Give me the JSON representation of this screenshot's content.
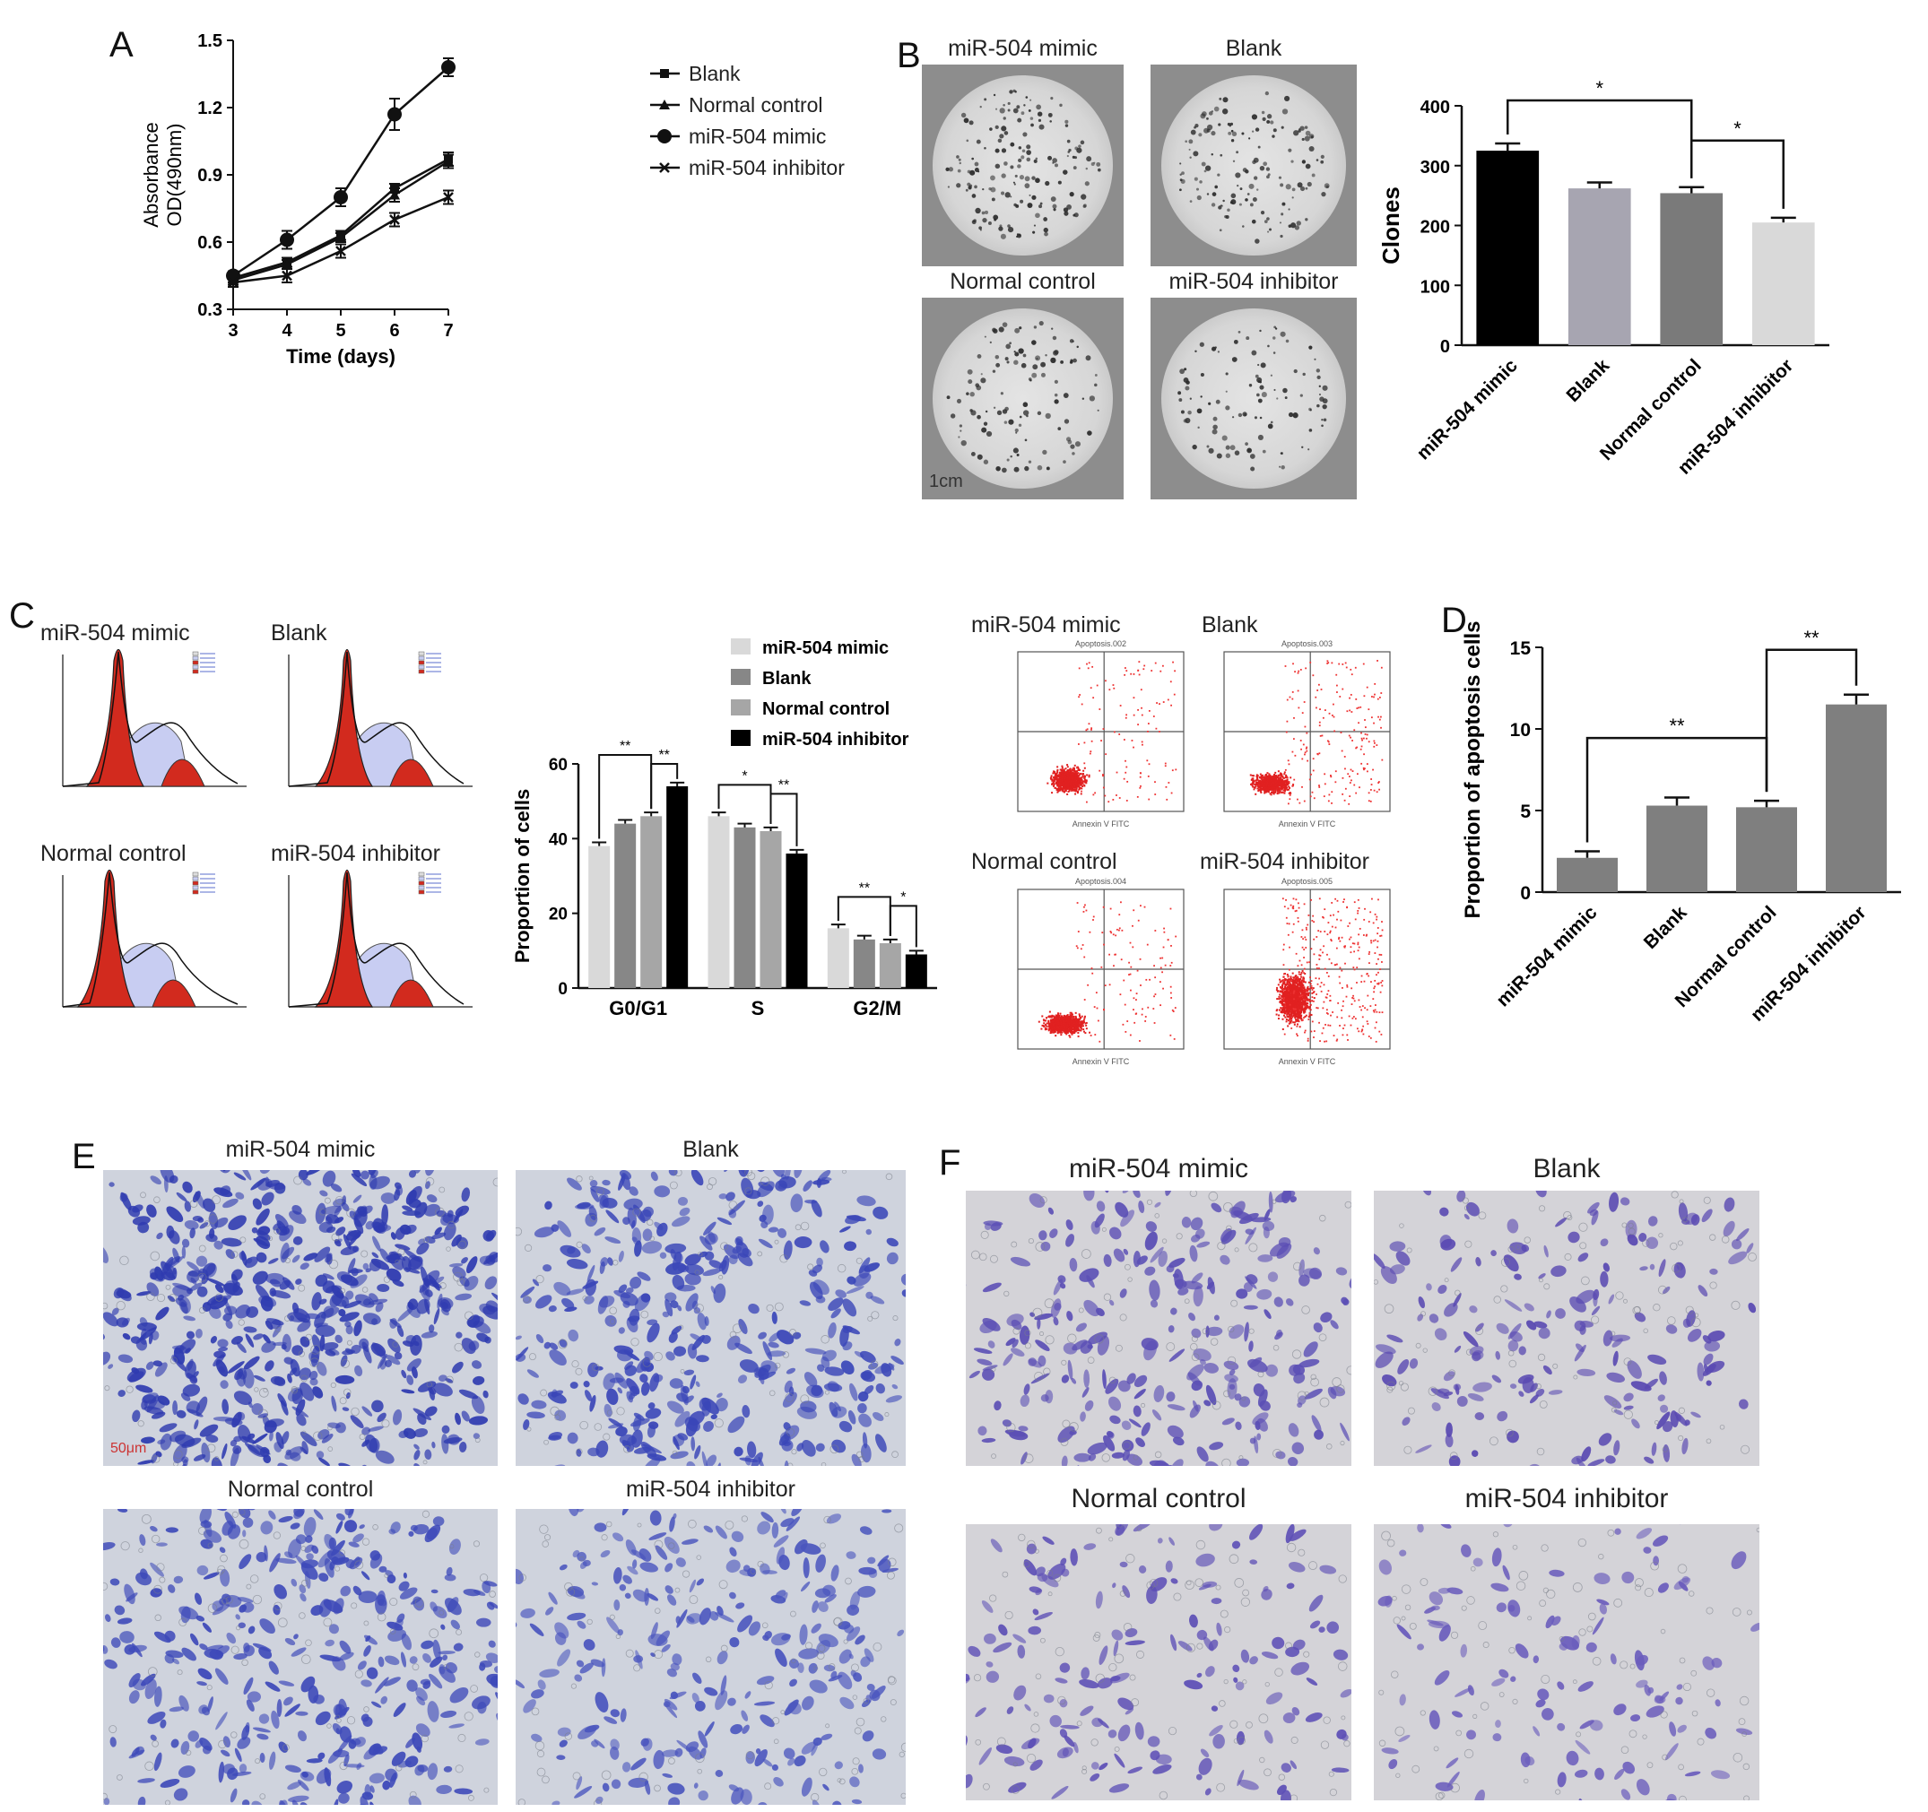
{
  "panels": {
    "A": "A",
    "B": "B",
    "C": "C",
    "D": "D",
    "E": "E",
    "F": "F"
  },
  "groups": [
    "miR-504 mimic",
    "Blank",
    "Normal control",
    "miR-504 inhibitor"
  ],
  "scale_b": "1cm",
  "scale_e": "50μm",
  "flow_titles": [
    "Apoptosis.002",
    "Apoptosis.003",
    "Apoptosis.004",
    "Apoptosis.005"
  ],
  "flow_axis": "Annexin V FITC",
  "chart_data": [
    {
      "id": "A",
      "type": "line",
      "xlabel": "Time (days)",
      "ylabel": "Absorbance OD(490nm)",
      "x": [
        3,
        4,
        5,
        6,
        7
      ],
      "xlim": [
        3,
        7
      ],
      "ylim": [
        0.3,
        1.5
      ],
      "yticks": [
        0.3,
        0.6,
        0.9,
        1.2,
        1.5
      ],
      "legend_position": "top-right outside",
      "series": [
        {
          "name": "Blank",
          "marker": "square",
          "values": [
            0.44,
            0.51,
            0.63,
            0.84,
            0.97
          ],
          "err": [
            0.02,
            0.02,
            0.02,
            0.02,
            0.03
          ]
        },
        {
          "name": "Normal control",
          "marker": "triangle",
          "values": [
            0.43,
            0.5,
            0.62,
            0.81,
            0.96
          ],
          "err": [
            0.02,
            0.02,
            0.02,
            0.03,
            0.03
          ]
        },
        {
          "name": "miR-504 mimic",
          "marker": "circle",
          "values": [
            0.45,
            0.61,
            0.8,
            1.17,
            1.38
          ],
          "err": [
            0.02,
            0.04,
            0.04,
            0.07,
            0.04
          ]
        },
        {
          "name": "miR-504 inhibitor",
          "marker": "x",
          "values": [
            0.42,
            0.45,
            0.56,
            0.7,
            0.8
          ],
          "err": [
            0.02,
            0.03,
            0.03,
            0.03,
            0.03
          ]
        }
      ]
    },
    {
      "id": "B",
      "type": "bar",
      "ylabel": "Clones",
      "categories": [
        "miR-504 mimic",
        "Blank",
        "Normal control",
        "miR-504 inhibitor"
      ],
      "values": [
        325,
        262,
        254,
        205
      ],
      "err": [
        12,
        10,
        10,
        8
      ],
      "colors": [
        "#000000",
        "#a7a5b1",
        "#7a7a7a",
        "#d9d9d9"
      ],
      "ylim": [
        0,
        400
      ],
      "yticks": [
        0,
        100,
        200,
        300,
        400
      ],
      "significance": [
        {
          "from": 0,
          "to": 2,
          "label": "*"
        },
        {
          "from": 2,
          "to": 3,
          "label": "*"
        }
      ]
    },
    {
      "id": "C",
      "type": "bar",
      "ylabel": "Proportion of cells",
      "categories": [
        "G0/G1",
        "S",
        "G2/M"
      ],
      "series": [
        {
          "name": "miR-504 mimic",
          "color": "#d9d9d9",
          "values": [
            38,
            46,
            16
          ],
          "err": [
            1,
            1,
            1
          ]
        },
        {
          "name": "Blank",
          "color": "#878787",
          "values": [
            44,
            43,
            13
          ],
          "err": [
            1,
            1,
            1
          ]
        },
        {
          "name": "Normal control",
          "color": "#a6a6a6",
          "values": [
            46,
            42,
            12
          ],
          "err": [
            1,
            1,
            1
          ]
        },
        {
          "name": "miR-504 inhibitor",
          "color": "#000000",
          "values": [
            54,
            36,
            9
          ],
          "err": [
            1,
            1,
            1
          ]
        }
      ],
      "ylim": [
        0,
        60
      ],
      "yticks": [
        0,
        20,
        40,
        60
      ],
      "legend_position": "top",
      "significance": [
        {
          "group": 0,
          "from": 0,
          "to": 2,
          "label": "**"
        },
        {
          "group": 0,
          "from": 2,
          "to": 3,
          "label": "**"
        },
        {
          "group": 1,
          "from": 0,
          "to": 2,
          "label": "*"
        },
        {
          "group": 1,
          "from": 2,
          "to": 3,
          "label": "**"
        },
        {
          "group": 2,
          "from": 0,
          "to": 2,
          "label": "**"
        },
        {
          "group": 2,
          "from": 2,
          "to": 3,
          "label": "*"
        }
      ]
    },
    {
      "id": "D",
      "type": "bar",
      "ylabel": "Proportion of apoptosis cells",
      "categories": [
        "miR-504 mimic",
        "Blank",
        "Normal control",
        "miR-504 inhibitor"
      ],
      "values": [
        2.1,
        5.3,
        5.2,
        11.5
      ],
      "err": [
        0.4,
        0.5,
        0.4,
        0.6
      ],
      "colors": [
        "#7f7f7f",
        "#7f7f7f",
        "#7f7f7f",
        "#7f7f7f"
      ],
      "ylim": [
        0,
        15
      ],
      "yticks": [
        0,
        5,
        10,
        15
      ],
      "significance": [
        {
          "from": 0,
          "to": 2,
          "label": "**"
        },
        {
          "from": 2,
          "to": 3,
          "label": "**"
        }
      ]
    }
  ]
}
